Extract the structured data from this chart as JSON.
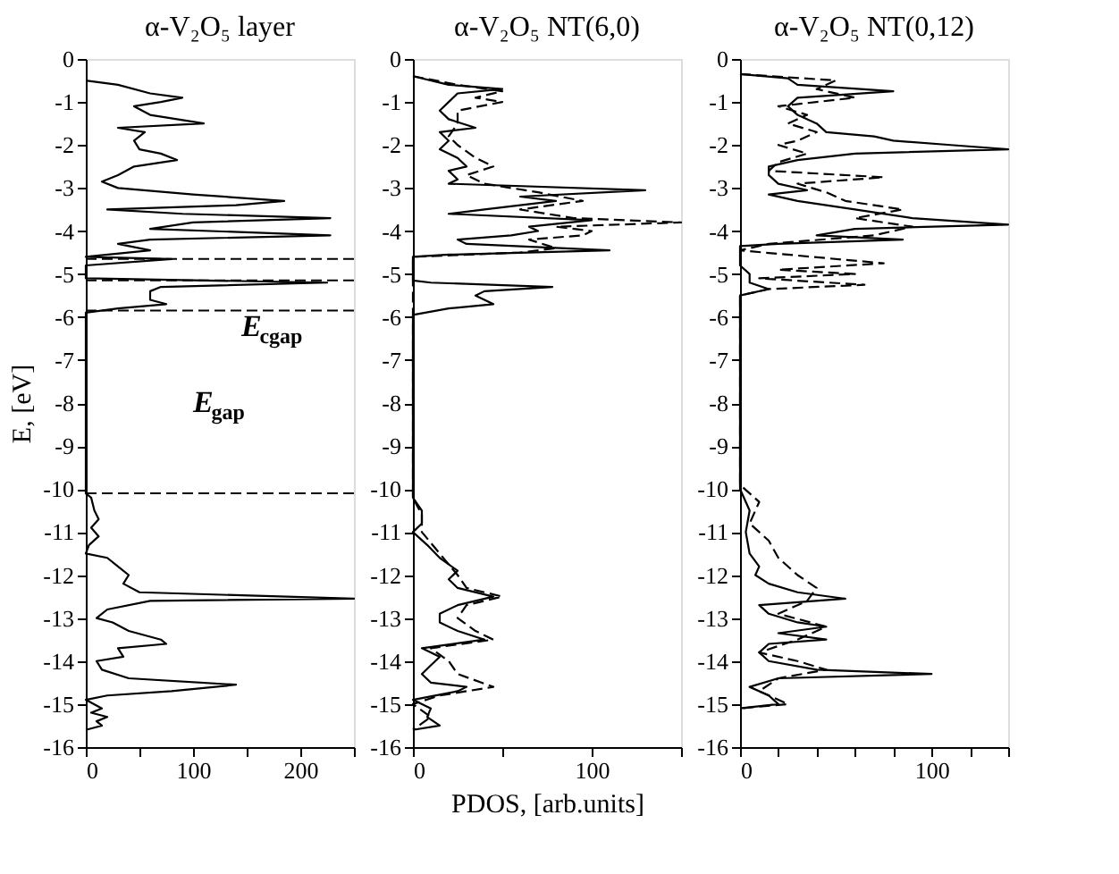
{
  "chart_data": [
    {
      "type": "line",
      "title": "α-V₂O₅ layer",
      "ylabel": "E, [eV]",
      "orientation": "horizontal",
      "xlim": [
        0,
        250
      ],
      "xticks": [
        0,
        {
          "value": 50,
          "label": null
        },
        100,
        {
          "value": 150,
          "label": null
        },
        200,
        {
          "value": 250,
          "label": null
        }
      ],
      "ylim": [
        -16,
        0
      ],
      "yticks": [
        0,
        -1,
        -2,
        -3,
        -4,
        -5,
        -6,
        -7,
        -8,
        -9,
        -10,
        -11,
        -12,
        -13,
        -14,
        -15,
        -16
      ],
      "series": [
        {
          "color": "#000000",
          "line_style": "solid",
          "x": [
            -0.5,
            -0.6,
            -0.8,
            -0.9,
            -1.0,
            -1.1,
            -1.3,
            -1.5,
            -1.6,
            -1.7,
            -1.9,
            -2.1,
            -2.2,
            -2.35,
            -2.5,
            -2.7,
            -2.85,
            -3.0,
            -3.15,
            -3.3,
            -3.4,
            -3.5,
            -3.6,
            -3.7,
            -3.8,
            -3.95,
            -4.1,
            -4.2,
            -4.3,
            -4.45,
            -4.6,
            -4.65,
            -4.8,
            -5.1,
            -5.2,
            -5.3,
            -5.4,
            -5.6,
            -5.7,
            -5.8,
            -5.9,
            -10.1,
            -10.2,
            -10.5,
            -10.7,
            -10.9,
            -11.1,
            -11.3,
            -11.5,
            -11.6,
            -11.8,
            -12.0,
            -12.2,
            -12.4,
            -12.55,
            -12.6,
            -12.8,
            -13.0,
            -13.1,
            -13.3,
            -13.5,
            -13.6,
            -13.7,
            -13.9,
            -14.0,
            -14.2,
            -14.4,
            -14.55,
            -14.7,
            -14.8,
            -14.9,
            -15.1,
            -15.2,
            -15.3,
            -15.4,
            -15.5,
            -15.6
          ],
          "values": [
            0,
            30,
            60,
            90,
            70,
            45,
            60,
            110,
            30,
            55,
            45,
            50,
            70,
            85,
            45,
            30,
            15,
            30,
            100,
            185,
            140,
            20,
            90,
            228,
            100,
            60,
            228,
            60,
            30,
            60,
            0,
            80,
            0,
            0,
            225,
            70,
            60,
            60,
            75,
            30,
            0,
            0,
            5,
            8,
            12,
            5,
            12,
            3,
            0,
            20,
            30,
            40,
            35,
            50,
            250,
            60,
            20,
            10,
            25,
            40,
            70,
            75,
            30,
            35,
            10,
            15,
            40,
            140,
            80,
            20,
            0,
            15,
            5,
            20,
            10,
            15,
            0
          ]
        }
      ],
      "ref_lines": [
        {
          "axis": "y",
          "value": -4.65,
          "line_style": "dashed"
        },
        {
          "axis": "y",
          "value": -5.15,
          "line_style": "dashed"
        },
        {
          "axis": "y",
          "value": -5.85,
          "line_style": "dashed"
        },
        {
          "axis": "y",
          "value": -10.1,
          "line_style": "dashed"
        }
      ],
      "annotations": [
        "E$_{cgap}$",
        "E$_{gap}$"
      ]
    },
    {
      "type": "line",
      "title": "α-V₂O₅ NT(6,0)",
      "xlabel": "PDOS, [arb.units]",
      "orientation": "horizontal",
      "xlim": [
        0,
        150
      ],
      "xticks": [
        0,
        {
          "value": 50,
          "label": null
        },
        100,
        {
          "value": 150,
          "label": null
        }
      ],
      "ylim": [
        -16,
        0
      ],
      "yticks": [
        0,
        -1,
        -2,
        -3,
        -4,
        -5,
        -6,
        -7,
        -8,
        -9,
        -10,
        -11,
        -12,
        -13,
        -14,
        -15,
        -16
      ],
      "series": [
        {
          "color": "#000000",
          "line_style": "solid",
          "x": [
            -0.4,
            -0.6,
            -0.7,
            -0.8,
            -1.0,
            -1.2,
            -1.4,
            -1.6,
            -1.7,
            -1.9,
            -2.1,
            -2.3,
            -2.5,
            -2.6,
            -2.8,
            -2.9,
            -3.05,
            -3.2,
            -3.3,
            -3.5,
            -3.6,
            -3.75,
            -3.9,
            -4.0,
            -4.1,
            -4.2,
            -4.3,
            -4.45,
            -4.55,
            -4.6,
            -5.15,
            -5.2,
            -5.3,
            -5.4,
            -5.5,
            -5.7,
            -5.8,
            -5.95,
            -10.2,
            -10.5,
            -10.8,
            -11.0,
            -11.3,
            -11.6,
            -11.9,
            -12.1,
            -12.3,
            -12.5,
            -12.7,
            -12.9,
            -13.1,
            -13.3,
            -13.5,
            -13.7,
            -13.9,
            -14.1,
            -14.3,
            -14.5,
            -14.6,
            -14.7,
            -14.9,
            -15.1,
            -15.3,
            -15.5,
            -15.6
          ],
          "values": [
            0,
            20,
            50,
            25,
            20,
            15,
            20,
            35,
            15,
            20,
            15,
            25,
            30,
            20,
            25,
            20,
            130,
            60,
            80,
            40,
            20,
            100,
            65,
            70,
            55,
            25,
            30,
            110,
            20,
            0,
            0,
            10,
            78,
            40,
            35,
            45,
            20,
            0,
            0,
            5,
            5,
            0,
            8,
            15,
            25,
            20,
            25,
            45,
            25,
            15,
            15,
            25,
            40,
            5,
            15,
            10,
            5,
            10,
            30,
            25,
            0,
            10,
            8,
            15,
            0
          ]
        },
        {
          "color": "#000000",
          "line_style": "dashed",
          "x": [
            -0.4,
            -0.6,
            -0.75,
            -0.9,
            -1.0,
            -1.2,
            -1.5,
            -1.8,
            -2.0,
            -2.3,
            -2.5,
            -2.7,
            -2.9,
            -3.1,
            -3.3,
            -3.5,
            -3.7,
            -3.8,
            -3.9,
            -4.0,
            -4.1,
            -4.2,
            -4.4,
            -4.5,
            -4.6,
            -10.2,
            -10.6,
            -11.0,
            -11.5,
            -12.0,
            -12.3,
            -12.5,
            -12.7,
            -13.0,
            -13.3,
            -13.5,
            -13.7,
            -14.0,
            -14.3,
            -14.6,
            -14.8,
            -15.0,
            -15.3,
            -15.6
          ],
          "values": [
            0,
            25,
            50,
            35,
            50,
            25,
            25,
            20,
            25,
            35,
            45,
            30,
            40,
            70,
            95,
            60,
            90,
            150,
            80,
            100,
            95,
            65,
            80,
            60,
            0,
            0,
            5,
            5,
            15,
            25,
            30,
            50,
            30,
            25,
            35,
            45,
            10,
            20,
            25,
            45,
            15,
            0,
            10,
            0
          ]
        }
      ]
    },
    {
      "type": "line",
      "title": "α-V₂O₅ NT(0,12)",
      "orientation": "horizontal",
      "xlim": [
        0,
        140
      ],
      "xticks": [
        0,
        {
          "value": 20,
          "label": null
        },
        {
          "value": 40,
          "label": null
        },
        {
          "value": 60,
          "label": null
        },
        {
          "value": 80,
          "label": null
        },
        100,
        {
          "value": 120,
          "label": null
        },
        {
          "value": 140,
          "label": null
        }
      ],
      "ylim": [
        -16,
        0
      ],
      "yticks": [
        0,
        -1,
        -2,
        -3,
        -4,
        -5,
        -6,
        -7,
        -8,
        -9,
        -10,
        -11,
        -12,
        -13,
        -14,
        -15,
        -16
      ],
      "series": [
        {
          "color": "#000000",
          "line_style": "solid",
          "x": [
            -0.35,
            -0.45,
            -0.6,
            -0.75,
            -0.9,
            -1.1,
            -1.3,
            -1.5,
            -1.7,
            -1.8,
            -1.9,
            -2.0,
            -2.1,
            -2.2,
            -2.35,
            -2.5,
            -2.7,
            -2.9,
            -3.05,
            -3.15,
            -3.3,
            -3.5,
            -3.7,
            -3.85,
            -3.95,
            -4.1,
            -4.2,
            -4.3,
            -4.35,
            -4.8,
            -5.0,
            -5.2,
            -5.35,
            -5.5,
            -10.0,
            -10.5,
            -11.0,
            -11.5,
            -11.8,
            -12.0,
            -12.2,
            -12.4,
            -12.55,
            -12.7,
            -12.9,
            -13.1,
            -13.2,
            -13.35,
            -13.5,
            -13.6,
            -13.8,
            -14.0,
            -14.2,
            -14.3,
            -14.4,
            -14.6,
            -14.8,
            -15.0,
            -15.1
          ],
          "values": [
            0,
            25,
            30,
            80,
            30,
            25,
            30,
            40,
            45,
            70,
            80,
            110,
            140,
            60,
            30,
            15,
            15,
            20,
            35,
            15,
            30,
            60,
            90,
            140,
            60,
            40,
            85,
            20,
            0,
            0,
            5,
            5,
            15,
            0,
            0,
            5,
            3,
            5,
            10,
            8,
            15,
            30,
            55,
            10,
            15,
            30,
            45,
            20,
            45,
            15,
            10,
            15,
            40,
            100,
            20,
            5,
            15,
            20,
            0
          ]
        },
        {
          "color": "#000000",
          "line_style": "dashed",
          "x": [
            -0.35,
            -0.5,
            -0.7,
            -0.9,
            -1.1,
            -1.3,
            -1.5,
            -1.7,
            -1.9,
            -2.0,
            -2.2,
            -2.4,
            -2.6,
            -2.75,
            -2.9,
            -3.1,
            -3.3,
            -3.5,
            -3.7,
            -3.9,
            -4.1,
            -4.3,
            -4.45,
            -4.75,
            -4.9,
            -5.0,
            -5.1,
            -5.25,
            -5.35,
            -5.5,
            -9.9,
            -10.3,
            -10.8,
            -11.2,
            -11.6,
            -12.0,
            -12.3,
            -12.6,
            -12.9,
            -13.2,
            -13.5,
            -13.8,
            -14.0,
            -14.2,
            -14.4,
            -14.7,
            -15.0,
            -15.1
          ],
          "values": [
            0,
            50,
            40,
            60,
            20,
            35,
            25,
            40,
            30,
            20,
            35,
            20,
            15,
            75,
            30,
            45,
            55,
            85,
            60,
            90,
            70,
            15,
            0,
            75,
            20,
            60,
            10,
            65,
            15,
            0,
            0,
            10,
            5,
            15,
            20,
            30,
            40,
            35,
            20,
            45,
            30,
            10,
            30,
            45,
            20,
            10,
            25,
            0
          ]
        }
      ]
    }
  ]
}
